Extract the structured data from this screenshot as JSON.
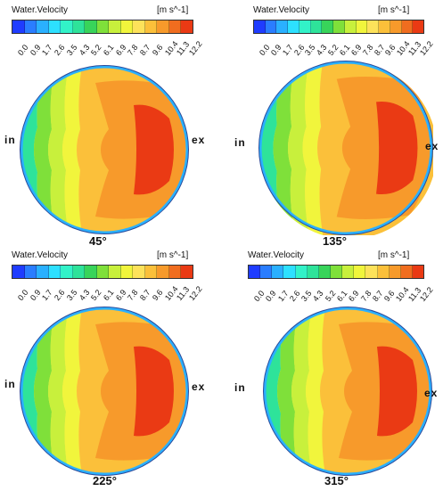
{
  "colorbar": {
    "title": "Water.Velocity",
    "unit": "[m s^-1]",
    "ticks": [
      "0.0",
      "0.9",
      "1.7",
      "2.6",
      "3.5",
      "4.3",
      "5.2",
      "6.1",
      "6.9",
      "7.8",
      "8.7",
      "9.6",
      "10.4",
      "11.3",
      "12.2"
    ],
    "colors": [
      "#1f3cff",
      "#2a7dff",
      "#2ab0ff",
      "#2de0ff",
      "#32f2c8",
      "#2ee39a",
      "#38d45a",
      "#7fe03a",
      "#c8f03c",
      "#f1f53c",
      "#fde25a",
      "#fbc03a",
      "#f79a2b",
      "#f06d1f",
      "#ea3a14"
    ]
  },
  "panels": [
    {
      "angle": "45°",
      "inlet": "in",
      "outlet": "ex"
    },
    {
      "angle": "135°",
      "inlet": "in",
      "outlet": "ex"
    },
    {
      "angle": "225°",
      "inlet": "in",
      "outlet": "ex"
    },
    {
      "angle": "315°",
      "inlet": "in",
      "outlet": "ex"
    }
  ]
}
